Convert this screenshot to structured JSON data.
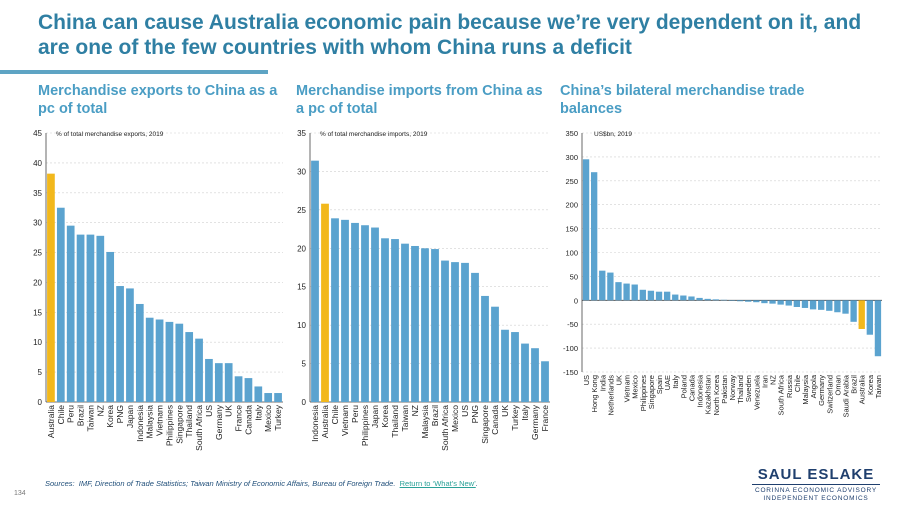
{
  "title": "China can cause Australia economic pain because we’re very dependent on it, and are one of the few countries with whom China runs a deficit",
  "subtitles": [
    "Merchandise exports to China as a pc of total",
    "Merchandise imports from China as a pc of total",
    "China’s bilateral merchandise trade balances"
  ],
  "colors": {
    "bar": "#5ba3cf",
    "highlight": "#f2b81c",
    "title": "#2f7fa3",
    "grid": "#d0d0d0"
  },
  "chart_data": [
    {
      "type": "bar",
      "note": "% of total merchandise exports, 2019",
      "ylim": [
        0,
        45
      ],
      "yticks": [
        0,
        5,
        10,
        15,
        20,
        25,
        30,
        35,
        40,
        45
      ],
      "highlight": "Australia",
      "categories": [
        "Australia",
        "Chile",
        "Peru",
        "Brazil",
        "Taiwan",
        "NZ",
        "Korea",
        "PNG",
        "Japan",
        "Indonesia",
        "Malaysia",
        "Vietnam",
        "Philippines",
        "Singapore",
        "Thailand",
        "South Africa",
        "US",
        "Germany",
        "UK",
        "France",
        "Canada",
        "Italy",
        "Mexico",
        "Turkey"
      ],
      "values": [
        38.2,
        32.5,
        29.5,
        28.0,
        28.0,
        27.8,
        25.1,
        19.4,
        19.0,
        16.4,
        14.1,
        13.8,
        13.4,
        13.1,
        11.7,
        10.6,
        7.2,
        6.5,
        6.5,
        4.3,
        4.0,
        2.6,
        1.5,
        1.5
      ]
    },
    {
      "type": "bar",
      "note": "% of total merchandise imports, 2019",
      "ylim": [
        0,
        35
      ],
      "yticks": [
        0,
        5,
        10,
        15,
        20,
        25,
        30,
        35
      ],
      "highlight": "Australia",
      "categories": [
        "Indonesia",
        "Australia",
        "Chile",
        "Vietnam",
        "Peru",
        "Philippines",
        "Japan",
        "Korea",
        "Thailand",
        "Taiwan",
        "NZ",
        "Malaysia",
        "Brazil",
        "South Africa",
        "Mexico",
        "US",
        "PNG",
        "Singapore",
        "Canada",
        "UK",
        "Turkey",
        "Italy",
        "Germany",
        "France"
      ],
      "values": [
        31.4,
        25.8,
        23.9,
        23.7,
        23.3,
        23.0,
        22.7,
        21.3,
        21.2,
        20.6,
        20.3,
        20.0,
        19.9,
        18.4,
        18.2,
        18.1,
        16.8,
        13.8,
        12.4,
        9.4,
        9.1,
        7.6,
        7.0,
        5.3
      ]
    },
    {
      "type": "bar",
      "note": "US$bn, 2019",
      "ylim": [
        -150,
        350
      ],
      "yticks": [
        -150,
        -100,
        -50,
        0,
        50,
        100,
        150,
        200,
        250,
        300,
        350
      ],
      "highlight": "Australia",
      "categories": [
        "US",
        "Hong Kong",
        "India",
        "Netherlands",
        "UK",
        "Vietnam",
        "Mexico",
        "Philippines",
        "Singapore",
        "Spain",
        "UAE",
        "Italy",
        "Poland",
        "Canada",
        "Indonesia",
        "Kazakhstan",
        "North Korea",
        "Pakistan",
        "Norway",
        "Thailand",
        "Sweden",
        "Venezuela",
        "Iran",
        "NZ",
        "South Africa",
        "Russia",
        "Chile",
        "Malaysia",
        "Angola",
        "Germany",
        "Switzerland",
        "Oman",
        "Saudi Arabia",
        "Brazil",
        "Australia",
        "Korea",
        "Taiwan"
      ],
      "values": [
        295,
        268,
        62,
        58,
        38,
        35,
        33,
        22,
        20,
        18,
        18,
        12,
        10,
        8,
        5,
        3,
        2,
        1,
        0,
        -2,
        -3,
        -4,
        -6,
        -7,
        -9,
        -11,
        -14,
        -16,
        -19,
        -20,
        -22,
        -25,
        -28,
        -45,
        -60,
        -72,
        -117
      ]
    }
  ],
  "sources_prefix": "Sources:",
  "sources_body": "IMF, Direction of Trade Statistics; Taiwan Ministry of Economic Affairs, Bureau of Foreign Trade.",
  "sources_link": "Return to ‘What’s New’",
  "page_number": "134",
  "logo": {
    "name": "SAUL ESLAKE",
    "line1": "CORINNA ECONOMIC ADVISORY",
    "line2": "INDEPENDENT ECONOMICS"
  }
}
